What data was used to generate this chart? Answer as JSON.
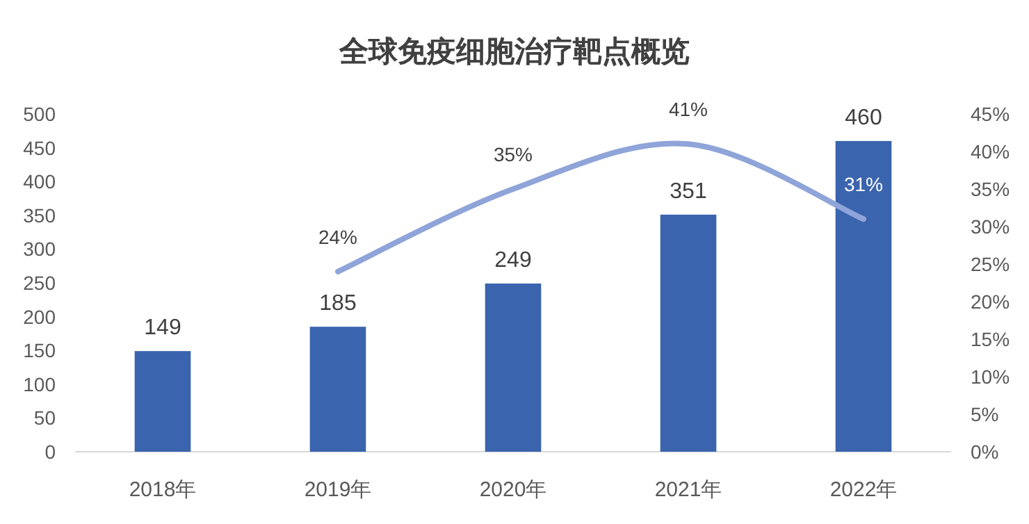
{
  "chart_data": {
    "type": "bar",
    "title": "全球免疫细胞治疗靶点概览",
    "categories": [
      "2018年",
      "2019年",
      "2020年",
      "2021年",
      "2022年"
    ],
    "series": [
      {
        "color": "#3b64ae",
        "values": [
          149,
          185,
          249,
          351,
          460
        ],
        "value_labels": [
          "149",
          "185",
          "249",
          "351",
          "460"
        ]
      },
      {
        "type": "line",
        "axis": "y2",
        "color": "#8fa4d8",
        "values": [
          null,
          24,
          35,
          41,
          31
        ],
        "value_labels": [
          null,
          "24%",
          "35%",
          "41%",
          "31%"
        ]
      }
    ],
    "ylim": [
      0,
      500
    ],
    "yticks": [
      0,
      50,
      100,
      150,
      200,
      250,
      300,
      350,
      400,
      450,
      500
    ],
    "y2lim": [
      0,
      45
    ],
    "y2ticks": [
      {
        "value": 0,
        "label": "0%"
      },
      {
        "value": 5,
        "label": "5%"
      },
      {
        "value": 10,
        "label": "10%"
      },
      {
        "value": 15,
        "label": "15%"
      },
      {
        "value": 20,
        "label": "20%"
      },
      {
        "value": 25,
        "label": "25%"
      },
      {
        "value": 30,
        "label": "30%"
      },
      {
        "value": 35,
        "label": "35%"
      },
      {
        "value": 40,
        "label": "40%"
      },
      {
        "value": 45,
        "label": "45%"
      }
    ],
    "grid": false
  }
}
